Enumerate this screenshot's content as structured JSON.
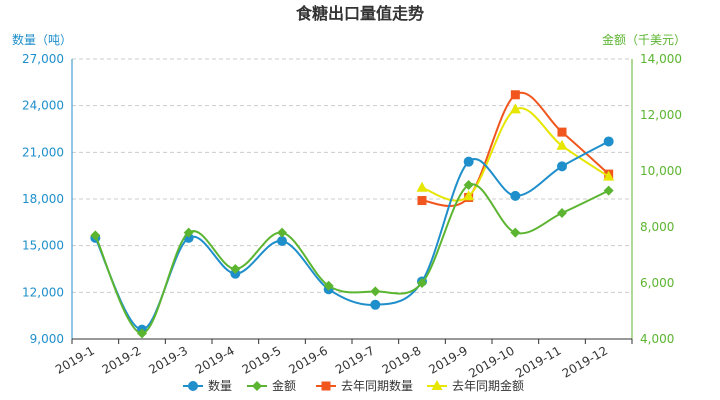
{
  "chart_data": {
    "type": "line",
    "title": "食糖出口量值走势",
    "categories": [
      "2019-1",
      "2019-2",
      "2019-3",
      "2019-4",
      "2019-5",
      "2019-6",
      "2019-7",
      "2019-8",
      "2019-9",
      "2019-10",
      "2019-11",
      "2019-12"
    ],
    "y_left": {
      "label": "数量（吨）",
      "min": 9000,
      "max": 27000,
      "ticks": [
        "9,000",
        "12,000",
        "15,000",
        "18,000",
        "21,000",
        "24,000",
        "27,000"
      ],
      "color": "#1f8fcb"
    },
    "y_right": {
      "label": "金额（千美元）",
      "min": 4000,
      "max": 14000,
      "ticks": [
        "4,000",
        "6,000",
        "8,000",
        "10,000",
        "12,000",
        "14,000"
      ],
      "color": "#5cb531"
    },
    "series": [
      {
        "name": "数量",
        "axis": "left",
        "marker": "circle",
        "color": "#1f8fcb",
        "values": [
          15500,
          9600,
          15500,
          13200,
          15300,
          12200,
          11200,
          12700,
          20400,
          18200,
          20100,
          21700
        ]
      },
      {
        "name": "金额",
        "axis": "right",
        "marker": "diamond",
        "color": "#5cb531",
        "values": [
          7700,
          4200,
          7800,
          6500,
          7800,
          5900,
          5700,
          6000,
          9500,
          7800,
          8500,
          9300
        ]
      },
      {
        "name": "去年同期数量",
        "axis": "left",
        "marker": "square",
        "color": "#f0561d",
        "values": [
          null,
          null,
          null,
          null,
          null,
          null,
          null,
          17900,
          18100,
          24700,
          22300,
          19600
        ]
      },
      {
        "name": "去年同期金额",
        "axis": "right",
        "marker": "triangle",
        "color": "#e6e600",
        "values": [
          null,
          null,
          null,
          null,
          null,
          null,
          null,
          9400,
          9100,
          12200,
          10900,
          9800
        ]
      }
    ],
    "grid": true,
    "legend_position": "bottom"
  }
}
